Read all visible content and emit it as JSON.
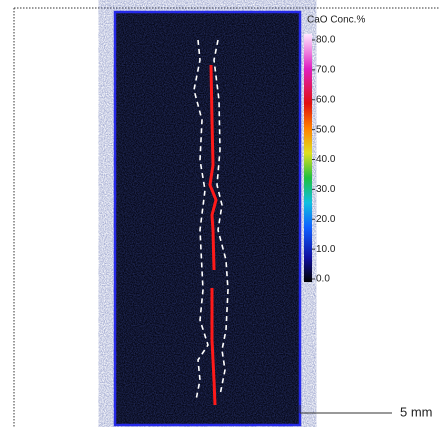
{
  "colorbar": {
    "title": "CaO Conc.%",
    "lim": [
      0,
      80
    ],
    "ticks": [
      {
        "value": 80,
        "label": "80.0"
      },
      {
        "value": 70,
        "label": "70.0"
      },
      {
        "value": 60,
        "label": "60.0"
      },
      {
        "value": 50,
        "label": "50.0"
      },
      {
        "value": 40,
        "label": "40.0"
      },
      {
        "value": 30,
        "label": "30.0"
      },
      {
        "value": 20,
        "label": "20.0"
      },
      {
        "value": 10,
        "label": "10.0"
      },
      {
        "value": 0,
        "label": "0.0"
      }
    ]
  },
  "scale_bar": {
    "label": "5 mm"
  }
}
